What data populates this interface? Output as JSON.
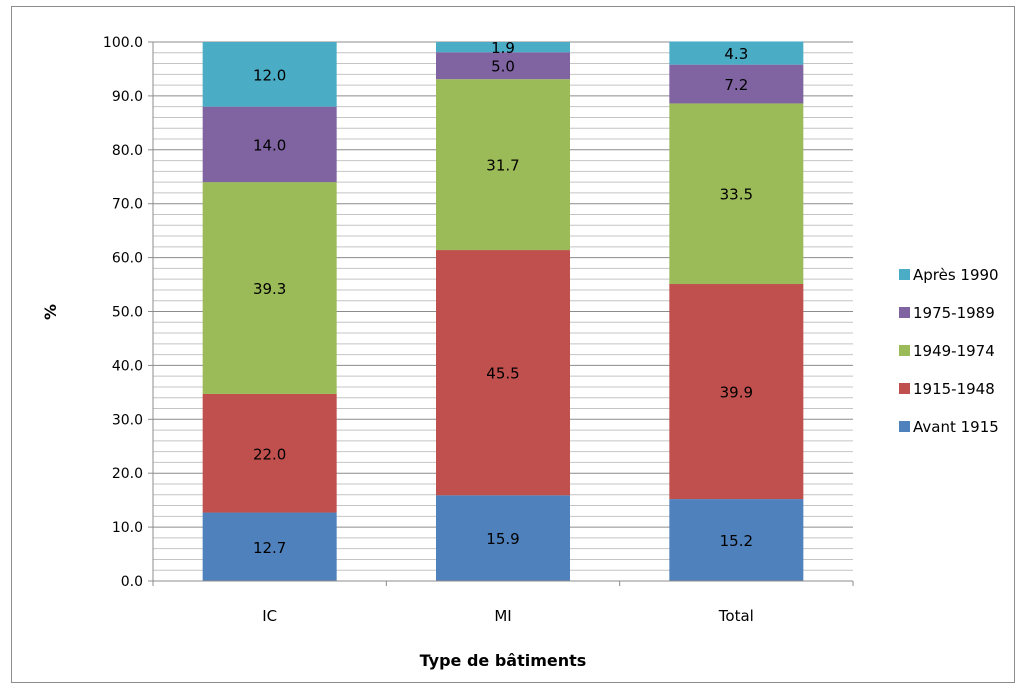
{
  "chart_data": {
    "type": "bar",
    "stacked": true,
    "title": "",
    "xlabel": "Type de bâtiments",
    "ylabel": "%",
    "ylim": [
      0,
      100
    ],
    "ytick_labels": [
      "0.0",
      "10.0",
      "20.0",
      "30.0",
      "40.0",
      "50.0",
      "60.0",
      "70.0",
      "80.0",
      "90.0",
      "100.0"
    ],
    "grid": true,
    "legend_position": "right",
    "categories": [
      "IC",
      "MI",
      "Total"
    ],
    "series": [
      {
        "name": "Avant 1915",
        "color": "#4f81bd",
        "values": [
          12.7,
          15.9,
          15.2
        ],
        "labels": [
          "12.7",
          "15.9",
          "15.2"
        ]
      },
      {
        "name": "1915-1948",
        "color": "#c0504d",
        "values": [
          22.0,
          45.5,
          39.9
        ],
        "labels": [
          "22.0",
          "45.5",
          "39.9"
        ]
      },
      {
        "name": "1949-1974",
        "color": "#9bbb59",
        "values": [
          39.3,
          31.7,
          33.5
        ],
        "labels": [
          "39.3",
          "31.7",
          "33.5"
        ]
      },
      {
        "name": "1975-1989",
        "color": "#8064a2",
        "values": [
          14.0,
          5.0,
          7.2
        ],
        "labels": [
          "14.0",
          "5.0",
          "7.2"
        ]
      },
      {
        "name": "Après 1990",
        "color": "#4bacc6",
        "values": [
          12.0,
          1.9,
          4.3
        ],
        "labels": [
          "12.0",
          "1.9",
          "4.3"
        ]
      }
    ]
  }
}
